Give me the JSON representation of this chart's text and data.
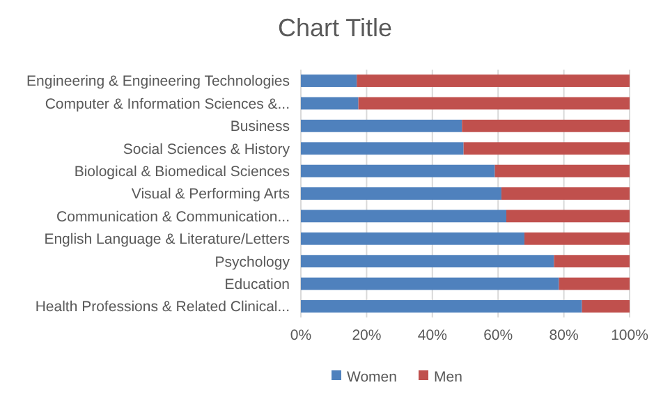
{
  "chart_data": {
    "type": "bar",
    "title": "Chart Title",
    "orientation": "horizontal",
    "stacked": true,
    "categories": [
      "Engineering & Engineering Technologies",
      "Computer & Information Sciences &...",
      "Business",
      "Social Sciences & History",
      "Biological & Biomedical Sciences",
      "Visual & Performing Arts",
      "Communication & Communication...",
      "English Language & Literature/Letters",
      "Psychology",
      "Education",
      "Health Professions & Related Clinical..."
    ],
    "series": [
      {
        "name": "Women",
        "color": "#4f81bd",
        "values": [
          17,
          17.5,
          49,
          49.5,
          59,
          61,
          62.5,
          68,
          77,
          78.5,
          85.5
        ]
      },
      {
        "name": "Men",
        "color": "#c0504d",
        "values": [
          83,
          82.5,
          51,
          50.5,
          41,
          39,
          37.5,
          32,
          23,
          21.5,
          14.5
        ]
      }
    ],
    "xlim": [
      0,
      100
    ],
    "xticks": [
      {
        "value": 0,
        "label": "0%"
      },
      {
        "value": 20,
        "label": "20%"
      },
      {
        "value": 40,
        "label": "40%"
      },
      {
        "value": 60,
        "label": "60%"
      },
      {
        "value": 80,
        "label": "80%"
      },
      {
        "value": 100,
        "label": "100%"
      }
    ],
    "grid": "x",
    "legend": "bottom"
  }
}
